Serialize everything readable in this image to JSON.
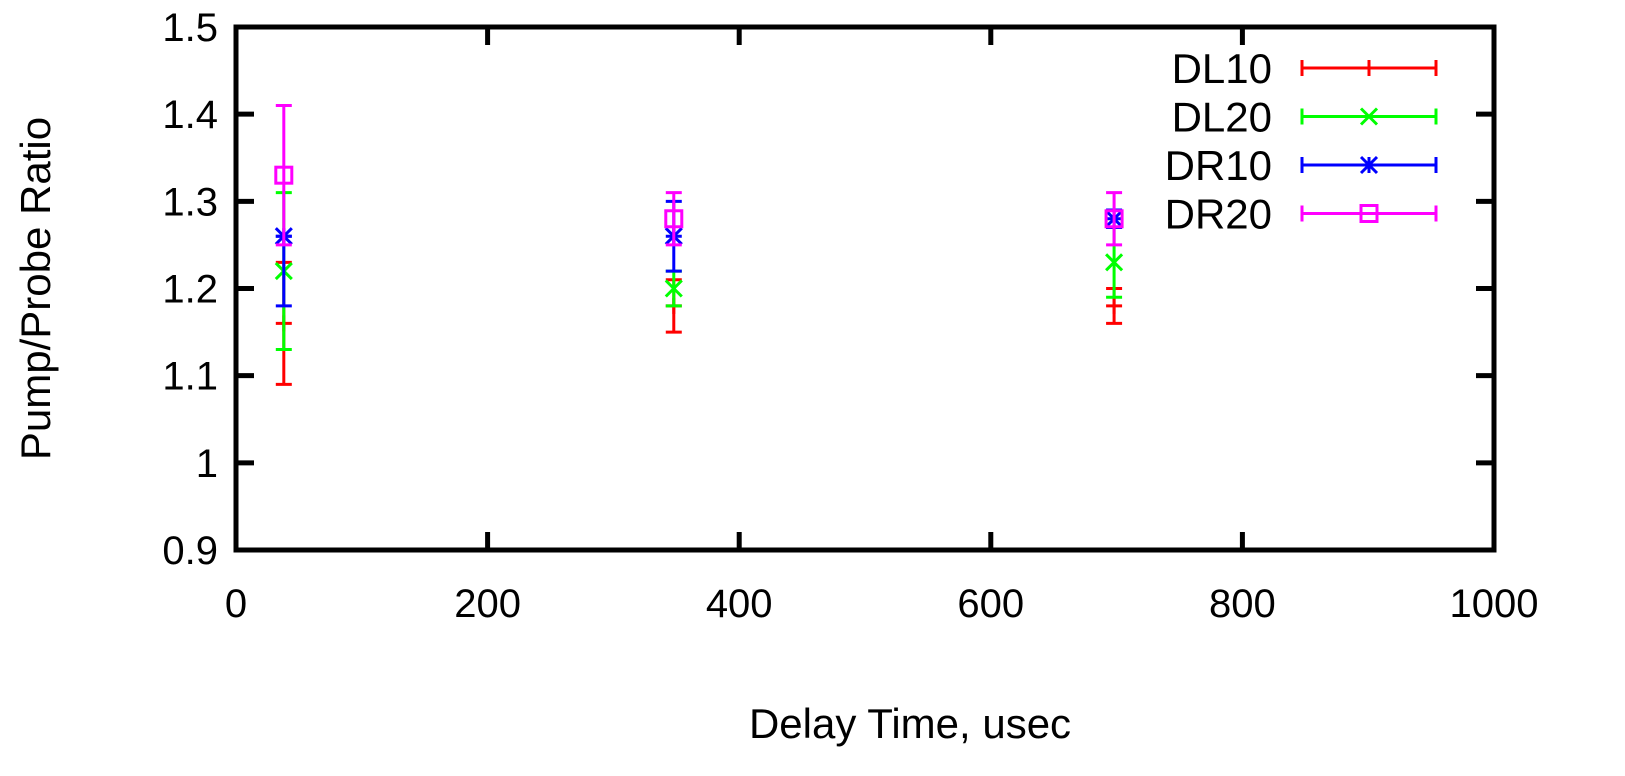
{
  "chart_data": {
    "type": "scatter",
    "title": "",
    "xlabel": "Delay Time, usec",
    "ylabel": "Pump/Probe Ratio",
    "xlim": [
      0,
      1000
    ],
    "ylim": [
      0.9,
      1.5
    ],
    "x_ticks": [
      0,
      200,
      400,
      600,
      800,
      1000
    ],
    "x_tick_labels": [
      "0",
      "200",
      "400",
      "600",
      "800",
      "1000"
    ],
    "y_ticks": [
      0.9,
      1.0,
      1.1,
      1.2,
      1.3,
      1.4,
      1.5
    ],
    "y_tick_labels": [
      "0.9",
      "1",
      "1.1",
      "1.2",
      "1.3",
      "1.4",
      "1.5"
    ],
    "grid": false,
    "legend_position": "top-right",
    "error_bars": true,
    "series": [
      {
        "name": "DL10",
        "color": "#ff0000",
        "marker": "plus",
        "points": [
          {
            "x": 38,
            "y": 1.16,
            "ylow": 1.09,
            "yhigh": 1.23
          },
          {
            "x": 348,
            "y": 1.18,
            "ylow": 1.15,
            "yhigh": 1.21
          },
          {
            "x": 698,
            "y": 1.18,
            "ylow": 1.16,
            "yhigh": 1.2
          }
        ]
      },
      {
        "name": "DL20",
        "color": "#00ff00",
        "marker": "cross",
        "points": [
          {
            "x": 38,
            "y": 1.22,
            "ylow": 1.13,
            "yhigh": 1.31
          },
          {
            "x": 348,
            "y": 1.2,
            "ylow": 1.18,
            "yhigh": 1.22
          },
          {
            "x": 698,
            "y": 1.23,
            "ylow": 1.19,
            "yhigh": 1.27
          }
        ]
      },
      {
        "name": "DR10",
        "color": "#0000ff",
        "marker": "star",
        "points": [
          {
            "x": 38,
            "y": 1.26,
            "ylow": 1.18,
            "yhigh": 1.26
          },
          {
            "x": 348,
            "y": 1.26,
            "ylow": 1.22,
            "yhigh": 1.3
          },
          {
            "x": 698,
            "y": 1.28,
            "ylow": 1.27,
            "yhigh": 1.29
          }
        ]
      },
      {
        "name": "DR20",
        "color": "#ff00ff",
        "marker": "square",
        "points": [
          {
            "x": 38,
            "y": 1.33,
            "ylow": 1.25,
            "yhigh": 1.41
          },
          {
            "x": 348,
            "y": 1.28,
            "ylow": 1.25,
            "yhigh": 1.31
          },
          {
            "x": 698,
            "y": 1.28,
            "ylow": 1.25,
            "yhigh": 1.31
          }
        ]
      }
    ]
  }
}
